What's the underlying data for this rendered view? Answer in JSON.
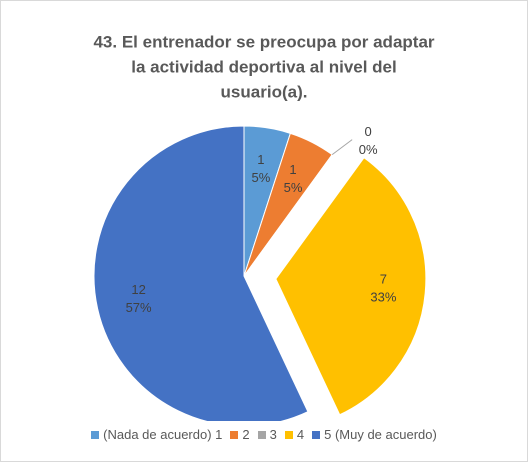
{
  "chart_data": {
    "type": "pie",
    "title": [
      "43. El entrenador se preocupa por adaptar",
      "la actividad deportiva al nivel del",
      "usuario(a)."
    ],
    "categories": [
      "(Nada de acuerdo) 1",
      "2",
      "3",
      "4",
      "5 (Muy de acuerdo)"
    ],
    "values": [
      5,
      5,
      0,
      33,
      57
    ],
    "value_labels": [
      "5%",
      "5%",
      "0%",
      "33%",
      "57%"
    ],
    "counts": [
      1,
      1,
      0,
      7,
      12
    ],
    "colors": [
      "#5b9bd5",
      "#ed7d31",
      "#a5a5a5",
      "#ffc000",
      "#4472c4"
    ],
    "explode": [
      false,
      false,
      false,
      true,
      false
    ],
    "legend": "bottom"
  }
}
